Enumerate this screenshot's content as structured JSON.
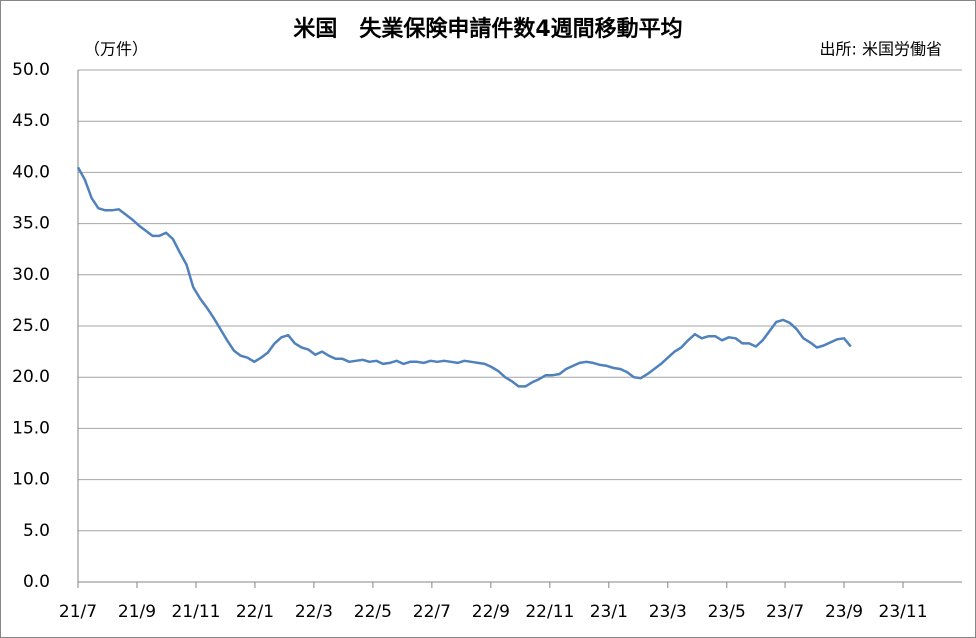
{
  "chart_data": {
    "type": "line",
    "title": "米国　失業保険申請件数4週間移動平均",
    "y_unit": "（万件）",
    "source": "出所: 米国労働省",
    "x": [
      0,
      1,
      2,
      3,
      4,
      5,
      6,
      7,
      8,
      9,
      10,
      11,
      12,
      13,
      14,
      15,
      16,
      17,
      18,
      19,
      20,
      21,
      22,
      23,
      24,
      25,
      26,
      27,
      28,
      29,
      30,
      31,
      32,
      33,
      34,
      35,
      36,
      37,
      38,
      39,
      40,
      41,
      42,
      43,
      44,
      45,
      46,
      47,
      48,
      49,
      50,
      51,
      52,
      53,
      54,
      55,
      56,
      57,
      58,
      59,
      60,
      61,
      62,
      63,
      64,
      65,
      66,
      67,
      68,
      69,
      70,
      71,
      72,
      73,
      74,
      75,
      76,
      77,
      78,
      79,
      80,
      81,
      82,
      83,
      84,
      85,
      86,
      87,
      88,
      89,
      90,
      91,
      92,
      93,
      94,
      95,
      96,
      97,
      98,
      99,
      100,
      101,
      102,
      103,
      104,
      105,
      106,
      107,
      108,
      109,
      110,
      111,
      112,
      113,
      114
    ],
    "series": [
      {
        "color": "#4f81bd",
        "values": [
          40.5,
          39.3,
          37.5,
          36.5,
          36.3,
          36.3,
          36.4,
          35.9,
          35.4,
          34.8,
          34.3,
          33.8,
          33.8,
          34.1,
          33.5,
          32.2,
          31.0,
          28.8,
          27.7,
          26.8,
          25.8,
          24.7,
          23.6,
          22.6,
          22.1,
          21.9,
          21.5,
          21.9,
          22.4,
          23.3,
          23.9,
          24.1,
          23.3,
          22.9,
          22.7,
          22.2,
          22.5,
          22.1,
          21.8,
          21.8,
          21.5,
          21.6,
          21.7,
          21.5,
          21.6,
          21.3,
          21.4,
          21.6,
          21.3,
          21.5,
          21.5,
          21.4,
          21.6,
          21.5,
          21.6,
          21.5,
          21.4,
          21.6,
          21.5,
          21.4,
          21.3,
          21.0,
          20.6,
          20.0,
          19.6,
          19.1,
          19.1,
          19.5,
          19.8,
          20.2,
          20.2,
          20.3,
          20.8,
          21.1,
          21.4,
          21.5,
          21.4,
          21.2,
          21.1,
          20.9,
          20.8,
          20.5,
          20.0,
          19.9,
          20.3,
          20.8,
          21.3,
          21.9,
          22.5,
          22.9,
          23.6,
          24.2,
          23.8,
          24.0,
          24.0,
          23.6,
          23.9,
          23.8,
          23.3,
          23.3,
          23.0,
          23.6,
          24.5,
          25.4,
          25.6,
          25.3,
          24.7,
          23.8,
          23.4,
          22.9,
          23.1,
          23.4,
          23.7,
          23.8,
          23.0
        ]
      }
    ],
    "xlim": [
      0,
      130.4
    ],
    "xticks": [
      {
        "value": 0,
        "label": "21/7"
      },
      {
        "value": 8.7,
        "label": "21/9"
      },
      {
        "value": 17.4,
        "label": "21/11"
      },
      {
        "value": 26.1,
        "label": "22/1"
      },
      {
        "value": 34.8,
        "label": "22/3"
      },
      {
        "value": 43.5,
        "label": "22/5"
      },
      {
        "value": 52.2,
        "label": "22/7"
      },
      {
        "value": 60.9,
        "label": "22/9"
      },
      {
        "value": 69.6,
        "label": "22/11"
      },
      {
        "value": 78.3,
        "label": "23/1"
      },
      {
        "value": 87.0,
        "label": "23/3"
      },
      {
        "value": 95.7,
        "label": "23/5"
      },
      {
        "value": 104.3,
        "label": "23/7"
      },
      {
        "value": 113.0,
        "label": "23/9"
      },
      {
        "value": 121.7,
        "label": "23/11"
      }
    ],
    "ylim": [
      0,
      50
    ],
    "yticks": [
      {
        "value": 0,
        "label": "0.0"
      },
      {
        "value": 5,
        "label": "5.0"
      },
      {
        "value": 10,
        "label": "10.0"
      },
      {
        "value": 15,
        "label": "15.0"
      },
      {
        "value": 20,
        "label": "20.0"
      },
      {
        "value": 25,
        "label": "25.0"
      },
      {
        "value": 30,
        "label": "30.0"
      },
      {
        "value": 35,
        "label": "35.0"
      },
      {
        "value": 40,
        "label": "40.0"
      },
      {
        "value": 45,
        "label": "45.0"
      },
      {
        "value": 50,
        "label": "50.0"
      }
    ],
    "grid": true
  }
}
